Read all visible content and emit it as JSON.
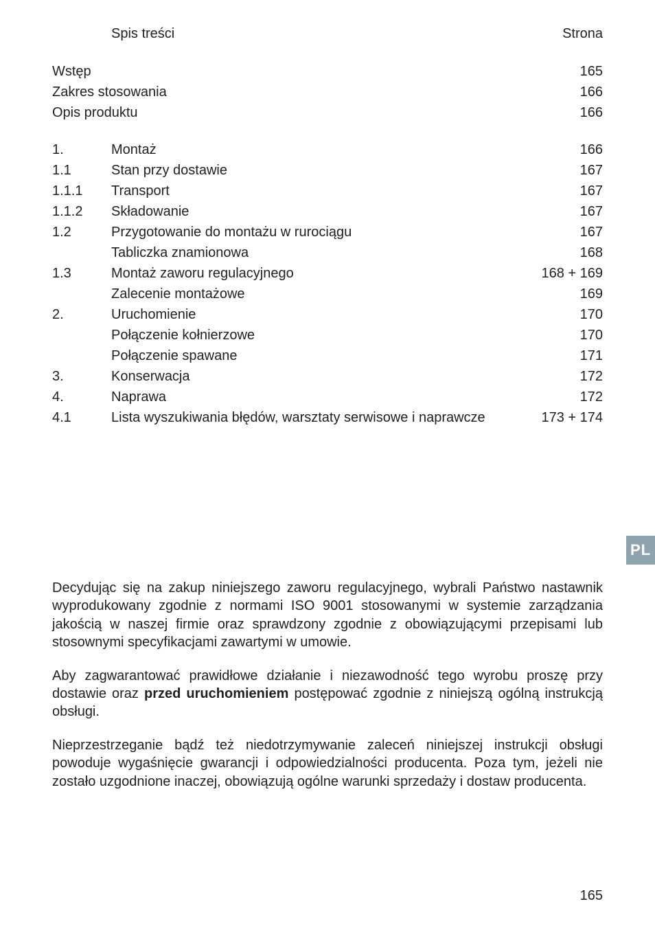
{
  "toc": {
    "header": {
      "title": "Spis treści",
      "page_label": "Strona"
    },
    "intro": [
      {
        "num": "",
        "title": "Wstęp",
        "page": "165"
      },
      {
        "num": "",
        "title": "Zakres stosowania",
        "page": "166"
      },
      {
        "num": "",
        "title": "Opis produktu",
        "page": "166"
      }
    ],
    "items": [
      {
        "num": "1.",
        "title": "Montaż",
        "page": "166"
      },
      {
        "num": "1.1",
        "title": "Stan przy dostawie",
        "page": "167"
      },
      {
        "num": "1.1.1",
        "title": "Transport",
        "page": "167"
      },
      {
        "num": "1.1.2",
        "title": "Składowanie",
        "page": "167"
      },
      {
        "num": "1.2",
        "title": "Przygotowanie do montażu w rurociągu",
        "page": "167"
      },
      {
        "num": "",
        "title": "Tabliczka znamionowa",
        "page": "168"
      },
      {
        "num": "1.3",
        "title": "Montaż zaworu regulacyjnego",
        "page": "168 + 169"
      },
      {
        "num": "",
        "title": "Zalecenie montażowe",
        "page": "169"
      },
      {
        "num": "2.",
        "title": "Uruchomienie",
        "page": "170"
      },
      {
        "num": "",
        "title": "Połączenie kołnierzowe",
        "page": "170"
      },
      {
        "num": "",
        "title": "Połączenie spawane",
        "page": "171"
      },
      {
        "num": "3.",
        "title": "Konserwacja",
        "page": "172"
      },
      {
        "num": "4.",
        "title": "Naprawa",
        "page": "172"
      },
      {
        "num": "4.1",
        "title": "Lista wyszukiwania błędów, warsztaty serwisowe i naprawcze",
        "page": "173 + 174"
      }
    ]
  },
  "body": {
    "p1_pre": "Decydując się na zakup niniejszego zaworu regulacyjnego, wybrali Państwo nastawnik wyprodukowany zgodnie z normami ISO 9001 stosowanymi w systemie zarządzania jakością w naszej firmie oraz sprawdzony zgodnie z obowiązującymi przepisami lub stosownymi specyfikacjami zawartymi w umowie.",
    "p2_pre": "Aby zagwarantować prawidłowe działanie i niezawodność tego wyrobu proszę przy dostawie oraz ",
    "p2_bold": "przed uruchomieniem",
    "p2_post": " postępować zgodnie z niniejszą ogólną instrukcją obsługi.",
    "p3": "Nieprzestrzeganie bądź też niedotrzymywanie zaleceń niniejszej instrukcji obsługi powoduje wygaśnięcie gwarancji i odpowiedzialności producenta. Poza tym, jeżeli nie zostało uzgodnione inaczej, obowiązują ogólne warunki sprzedaży i dostaw producenta."
  },
  "side_tab": "PL",
  "page_number": "165",
  "colors": {
    "text": "#212121",
    "tab_bg": "#8fa3af",
    "tab_text": "#ffffff",
    "page_bg": "#ffffff"
  }
}
